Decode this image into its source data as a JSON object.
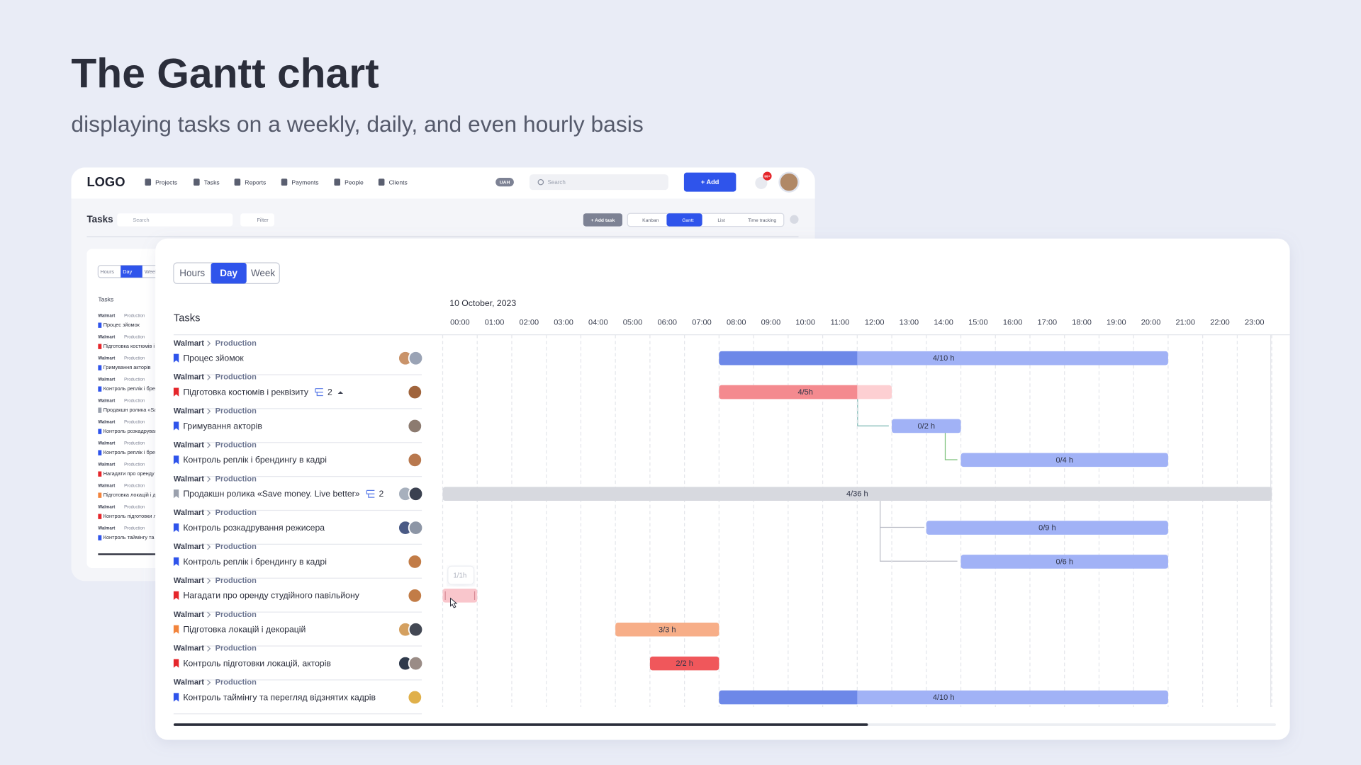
{
  "header": {
    "title": "The Gantt chart",
    "subtitle": "displaying tasks on a weekly, daily, and even hourly basis"
  },
  "app": {
    "logo": "LOGO",
    "nav": [
      "Projects",
      "Tasks",
      "Reports",
      "Payments",
      "People",
      "Clients"
    ],
    "currency": "UAH",
    "search": "Search",
    "add": "+ Add",
    "notifications": "99+",
    "page_title": "Tasks",
    "task_search": "Search",
    "filter": "Filter",
    "add_task": "+ Add task",
    "views": [
      "Kanban",
      "Gantt",
      "List",
      "Time tracking"
    ],
    "active_view": 1
  },
  "gantt": {
    "scales": [
      "Hours",
      "Day",
      "Week"
    ],
    "active_scale": 1,
    "tasks_label": "Tasks",
    "date": "10 October, 2023",
    "hours": [
      "00:00",
      "01:00",
      "02:00",
      "03:00",
      "04:00",
      "05:00",
      "06:00",
      "07:00",
      "08:00",
      "09:00",
      "10:00",
      "11:00",
      "12:00",
      "13:00",
      "14:00",
      "15:00",
      "16:00",
      "17:00",
      "18:00",
      "19:00",
      "20:00",
      "21:00",
      "22:00",
      "23:00"
    ],
    "tasks": [
      {
        "client": "Walmart",
        "project": "Production",
        "name": "Процес зйомок",
        "flag": "#2f54eb",
        "avatars": [
          "#c9936a",
          "#9aa3b5"
        ],
        "bar": {
          "start": 8,
          "end": 21,
          "progress_end": 12,
          "label": "4/10 h",
          "color": "#a1b2f6",
          "progress_color": "#6d88e8"
        }
      },
      {
        "client": "Walmart",
        "project": "Production",
        "name": "Підготовка костюмів і реквізиту",
        "flag": "#e5262b",
        "subtasks": 2,
        "avatars": [
          "#a0643c"
        ],
        "bar": {
          "start": 8,
          "end": 13,
          "progress_end": 12,
          "label": "4/5h",
          "color": "#fdcfd2",
          "progress_color": "#f48a8f"
        }
      },
      {
        "client": "Walmart",
        "project": "Production",
        "name": "Гримування акторів",
        "flag": "#2f54eb",
        "avatars": [
          "#8c7b70"
        ],
        "bar": {
          "start": 13,
          "end": 15,
          "label": "0/2 h",
          "color": "#a1b2f6"
        }
      },
      {
        "client": "Walmart",
        "project": "Production",
        "name": "Контроль реплік і брендингу в кадрі",
        "flag": "#2f54eb",
        "avatars": [
          "#b8784e"
        ],
        "bar": {
          "start": 15,
          "end": 21,
          "label": "0/4 h",
          "color": "#a1b2f6"
        }
      },
      {
        "client": "Walmart",
        "project": "Production",
        "name": "Продакшн ролика «Save money. Live better»",
        "flag": "#9aa0ad",
        "subtasks": 2,
        "avatars": [
          "#a7b0bd",
          "#3b4150"
        ],
        "bar": {
          "start": 0,
          "end": 24,
          "label": "4/36 h",
          "color": "#d7d9df"
        }
      },
      {
        "client": "Walmart",
        "project": "Production",
        "name": "Контроль розкадрування режисера",
        "flag": "#2f54eb",
        "avatars": [
          "#4a5a85",
          "#8d96a6"
        ],
        "bar": {
          "start": 14,
          "end": 21,
          "label": "0/9 h",
          "color": "#a1b2f6"
        }
      },
      {
        "client": "Walmart",
        "project": "Production",
        "name": "Контроль реплік і брендингу в кадрі",
        "flag": "#2f54eb",
        "avatars": [
          "#c27c47"
        ],
        "bar": {
          "start": 15,
          "end": 21,
          "label": "0/6 h",
          "color": "#a1b2f6"
        }
      },
      {
        "client": "Walmart",
        "project": "Production",
        "name": "Нагадати про оренду студійного павільйону",
        "flag": "#e5262b",
        "avatars": [
          "#c27c47"
        ],
        "bar": {
          "start": 0,
          "end": 1,
          "label": "1/1h",
          "label_position": "above",
          "color": "#f9c6cc"
        }
      },
      {
        "client": "Walmart",
        "project": "Production",
        "name": "Підготовка локацій і декорацій",
        "flag": "#f2843c",
        "avatars": [
          "#d4a060",
          "#434854"
        ],
        "bar": {
          "start": 5,
          "end": 8,
          "label": "3/3 h",
          "color": "#f7ae88"
        }
      },
      {
        "client": "Walmart",
        "project": "Production",
        "name": "Контроль підготовки локацій, акторів",
        "flag": "#e5262b",
        "avatars": [
          "#2f3a4c",
          "#9a8c86"
        ],
        "bar": {
          "start": 6,
          "end": 8,
          "label": "2/2 h",
          "color": "#f0575b"
        }
      },
      {
        "client": "Walmart",
        "project": "Production",
        "name": "Контроль таймінгу та перегляд відзнятих кадрів",
        "flag": "#2f54eb",
        "avatars": [
          "#e0b04a"
        ],
        "bar": {
          "start": 8,
          "end": 21,
          "progress_end": 12,
          "label": "4/10 h",
          "color": "#a1b2f6",
          "progress_color": "#6d88e8"
        }
      }
    ]
  }
}
